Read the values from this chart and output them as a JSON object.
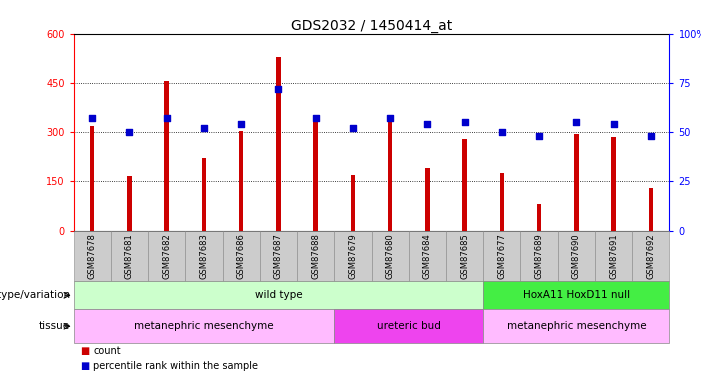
{
  "title": "GDS2032 / 1450414_at",
  "samples": [
    "GSM87678",
    "GSM87681",
    "GSM87682",
    "GSM87683",
    "GSM87686",
    "GSM87687",
    "GSM87688",
    "GSM87679",
    "GSM87680",
    "GSM87684",
    "GSM87685",
    "GSM87677",
    "GSM87689",
    "GSM87690",
    "GSM87691",
    "GSM87692"
  ],
  "counts": [
    320,
    165,
    455,
    220,
    305,
    530,
    335,
    170,
    335,
    190,
    280,
    175,
    80,
    295,
    285,
    130
  ],
  "percentiles": [
    57,
    50,
    57,
    52,
    54,
    72,
    57,
    52,
    57,
    54,
    55,
    50,
    48,
    55,
    54,
    48
  ],
  "left_ylim": [
    0,
    600
  ],
  "right_ylim": [
    0,
    100
  ],
  "left_yticks": [
    0,
    150,
    300,
    450,
    600
  ],
  "right_yticks": [
    0,
    25,
    50,
    75,
    100
  ],
  "bar_color": "#cc0000",
  "dot_color": "#0000cc",
  "genotype_groups": [
    {
      "label": "wild type",
      "start": 0,
      "end": 11,
      "color": "#ccffcc"
    },
    {
      "label": "HoxA11 HoxD11 null",
      "start": 11,
      "end": 16,
      "color": "#44ee44"
    }
  ],
  "tissue_groups": [
    {
      "label": "metanephric mesenchyme",
      "start": 0,
      "end": 7,
      "color": "#ffbbff"
    },
    {
      "label": "ureteric bud",
      "start": 7,
      "end": 11,
      "color": "#ee44ee"
    },
    {
      "label": "metanephric mesenchyme",
      "start": 11,
      "end": 16,
      "color": "#ffbbff"
    }
  ],
  "genotype_label": "genotype/variation",
  "tissue_label": "tissue",
  "legend_items": [
    {
      "label": "count",
      "color": "#cc0000"
    },
    {
      "label": "percentile rank within the sample",
      "color": "#0000cc"
    }
  ],
  "bg_color": "#ffffff",
  "tick_label_bg": "#cccccc",
  "title_fontsize": 10,
  "tick_fontsize": 7,
  "bar_width": 0.12
}
